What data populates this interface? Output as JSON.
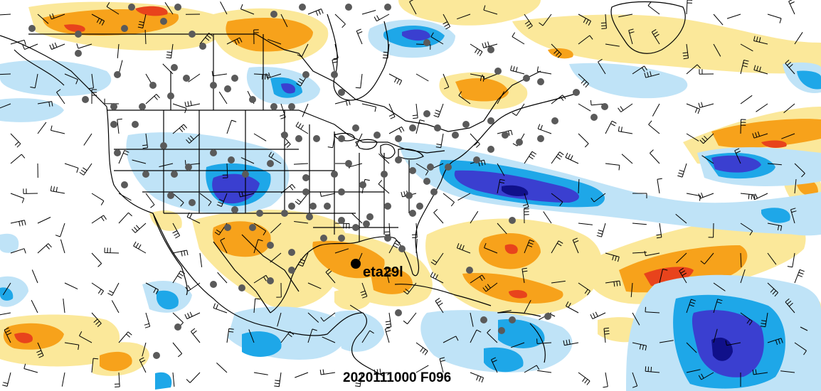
{
  "map": {
    "storm_label": "eta29l",
    "timestamp_label": "2020111000 F096",
    "colors": {
      "warm_light": "#fbe89a",
      "warm_mid": "#f7a21b",
      "warm_dark": "#e8431c",
      "cool_light": "#bfe3f7",
      "cool_mid": "#1ea7e8",
      "cool_dark": "#3a3fd0",
      "cool_deep": "#10108a",
      "station": "#5a5a5a",
      "storm_marker": "#000000",
      "outline": "#000000"
    },
    "layers": [
      "shaded-anomaly-field",
      "coastlines-and-borders",
      "wind-barbs",
      "station-dots",
      "storm-center-marker"
    ]
  }
}
